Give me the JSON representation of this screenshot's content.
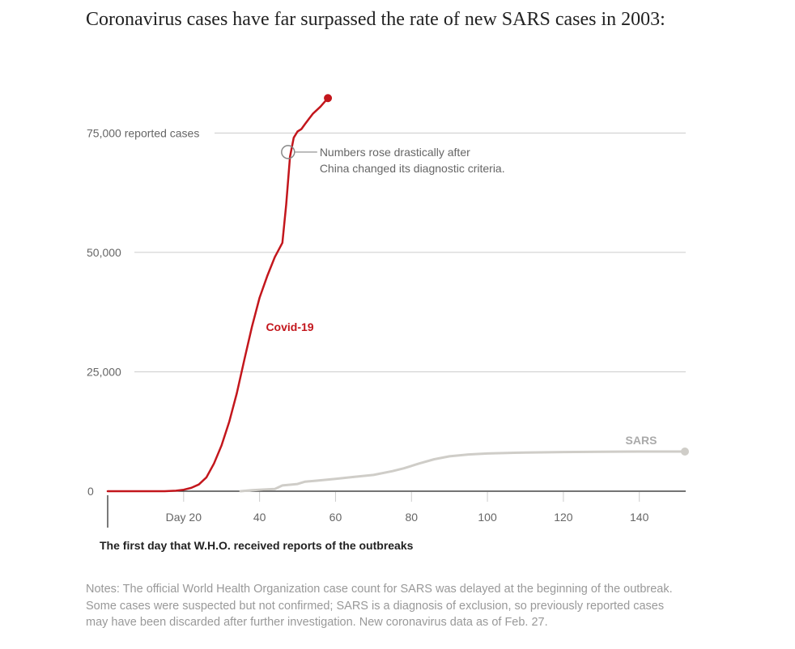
{
  "colors": {
    "covid": "#c3161c",
    "sars": "#cfcdc8",
    "sars_label": "#aaaaaa",
    "grid": "#cccccc",
    "axis": "#222222",
    "annotation": "#888888"
  },
  "chart_data": {
    "type": "line",
    "title": "Coronavirus cases have far surpassed the rate of new SARS cases in 2003:",
    "xlim": [
      0,
      152
    ],
    "ylim": [
      0,
      82000
    ],
    "x_ticks": [
      {
        "value": 20,
        "label": "Day 20"
      },
      {
        "value": 40,
        "label": "40"
      },
      {
        "value": 60,
        "label": "60"
      },
      {
        "value": 80,
        "label": "80"
      },
      {
        "value": 100,
        "label": "100"
      },
      {
        "value": 120,
        "label": "120"
      },
      {
        "value": 140,
        "label": "140"
      }
    ],
    "y_gridlines": [
      {
        "value": 0,
        "label": "0"
      },
      {
        "value": 25000,
        "label": "25,000"
      },
      {
        "value": 50000,
        "label": "50,000"
      },
      {
        "value": 75000,
        "label": "75,000 reported cases"
      }
    ],
    "series": [
      {
        "name": "Covid-19",
        "label": "Covid-19",
        "x": [
          0,
          5,
          10,
          15,
          18,
          20,
          22,
          24,
          26,
          28,
          30,
          32,
          34,
          36,
          38,
          40,
          42,
          44,
          46,
          47,
          48,
          49,
          50,
          51,
          52,
          54,
          56,
          58
        ],
        "y": [
          0,
          0,
          0,
          0,
          100,
          300,
          700,
          1400,
          2900,
          5800,
          9600,
          14500,
          20500,
          27600,
          34500,
          40500,
          45000,
          49000,
          52000,
          60000,
          70000,
          74000,
          75300,
          75800,
          76900,
          79000,
          80500,
          82300
        ]
      },
      {
        "name": "SARS",
        "label": "SARS",
        "x": [
          35,
          38,
          40,
          44,
          46,
          50,
          52,
          55,
          60,
          65,
          70,
          75,
          78,
          82,
          86,
          90,
          95,
          100,
          110,
          120,
          130,
          140,
          152
        ],
        "y": [
          0,
          200,
          300,
          450,
          1200,
          1500,
          2000,
          2200,
          2600,
          3000,
          3400,
          4200,
          4800,
          5800,
          6700,
          7300,
          7700,
          7900,
          8100,
          8200,
          8250,
          8300,
          8300
        ]
      }
    ],
    "annotations": [
      {
        "x": 47.5,
        "y": 71000,
        "text_line1": "Numbers rose drastically after",
        "text_line2": "China changed its diagnostic criteria."
      }
    ],
    "origin_note": "The first day that W.H.O. received reports of the outbreaks"
  },
  "notes": "Notes: The official World Health Organization case count for SARS was delayed at the beginning of the outbreak. Some cases were suspected but not confirmed; SARS is a diagnosis of exclusion, so previously reported cases may have been discarded after further investigation. New coronavirus data as of Feb. 27."
}
